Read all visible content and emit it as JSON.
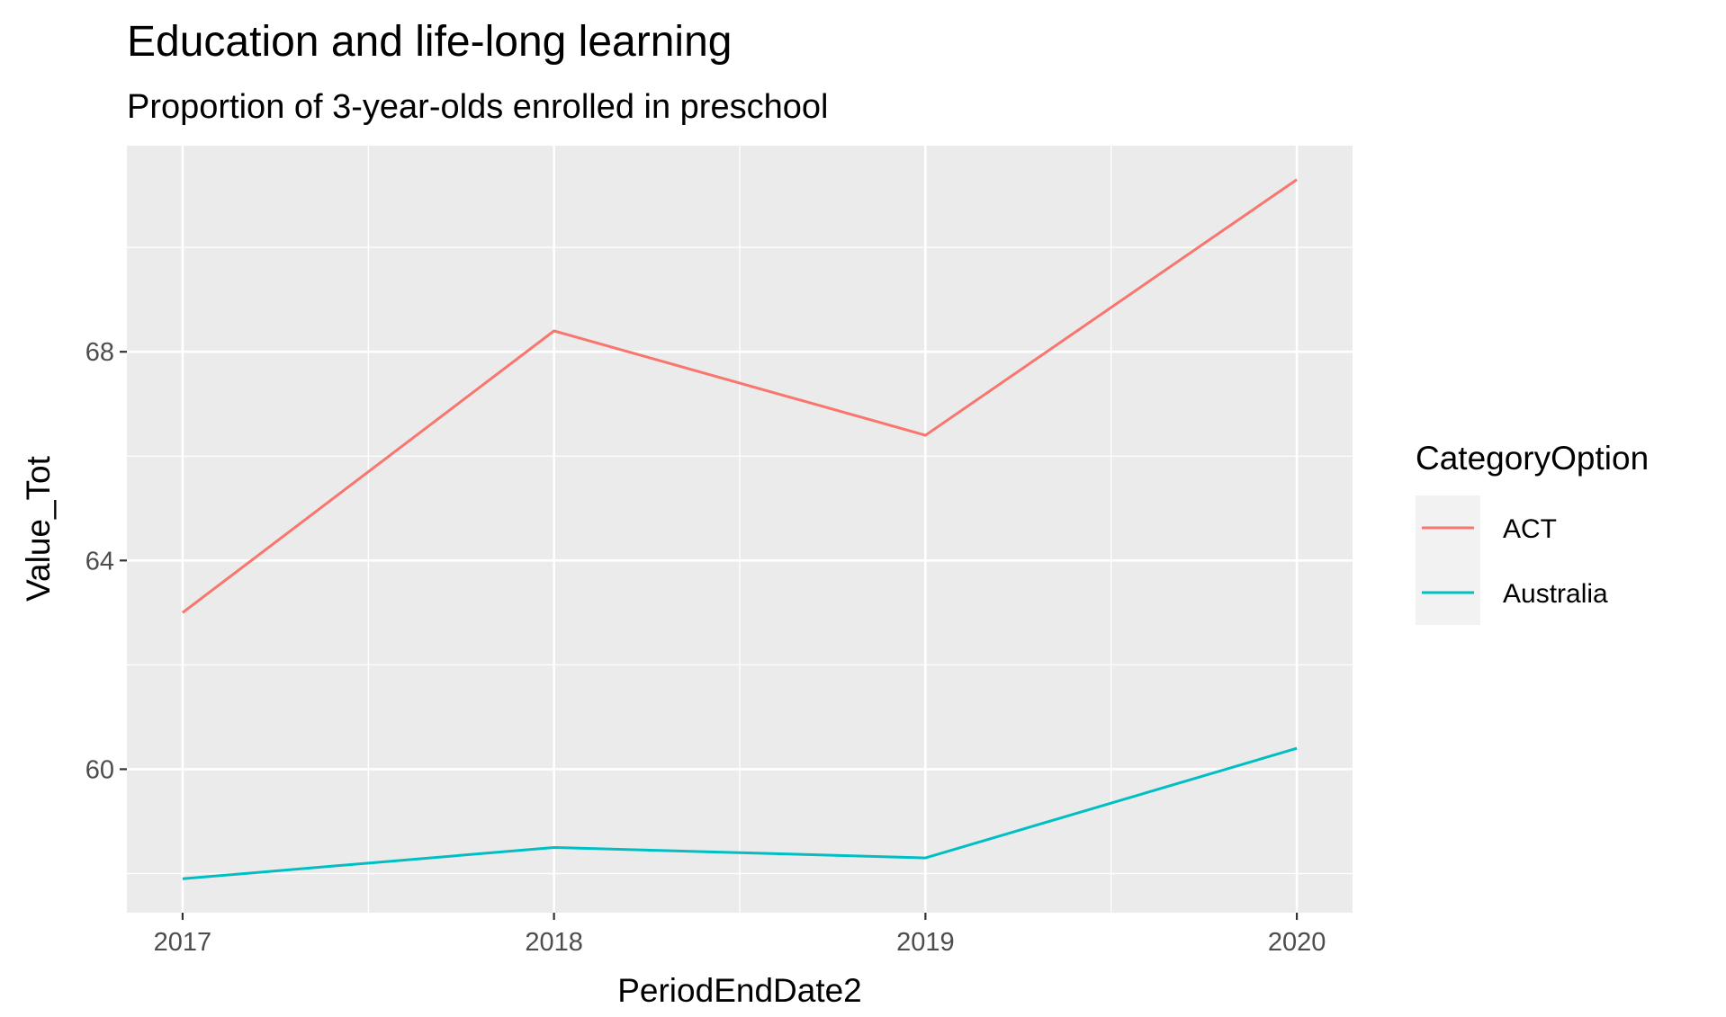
{
  "chart_data": {
    "type": "line",
    "title": "Education and life-long learning",
    "subtitle": "Proportion of 3-year-olds enrolled in preschool",
    "xlabel": "PeriodEndDate2",
    "ylabel": "Value_Tot",
    "x": [
      2017,
      2018,
      2019,
      2020
    ],
    "x_tick_labels": [
      "2017",
      "2018",
      "2019",
      "2020"
    ],
    "xlim": [
      2016.85,
      2020.15
    ],
    "y_ticks": [
      60,
      64,
      68
    ],
    "y_tick_labels": [
      "60",
      "64",
      "68"
    ],
    "ylim": [
      57.25,
      71.95
    ],
    "grid": true,
    "legend_position": "right",
    "legend_title": "CategoryOption",
    "series": [
      {
        "name": "ACT",
        "color": "#F8766D",
        "values": [
          63.0,
          68.4,
          66.4,
          71.3
        ]
      },
      {
        "name": "Australia",
        "color": "#00BFC4",
        "values": [
          57.9,
          58.5,
          58.3,
          60.4
        ]
      }
    ],
    "panel_background": "#EBEBEB",
    "grid_color": "#FFFFFF"
  }
}
